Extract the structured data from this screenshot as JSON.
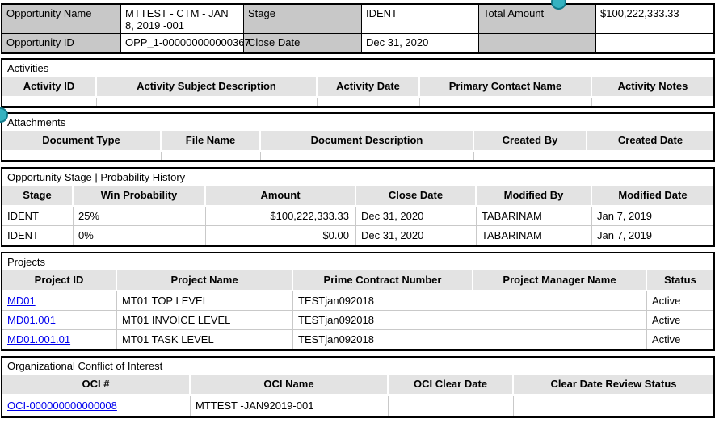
{
  "colors": {
    "label_bg": "#c8c8c8",
    "header_bg": "#e3e3e3",
    "link": "#0000ee",
    "annotation_dot": "#35b2c0"
  },
  "summary": {
    "opportunity_name_label": "Opportunity Name",
    "opportunity_name": "MTTEST - CTM - JAN 8, 2019 -001",
    "stage_label": "Stage",
    "stage": "IDENT",
    "total_amount_label": "Total Amount",
    "total_amount": "$100,222,333.33",
    "opportunity_id_label": "Opportunity ID",
    "opportunity_id": "OPP_1-000000000000367",
    "close_date_label": "Close Date",
    "close_date": "Dec 31, 2020"
  },
  "activities": {
    "title": "Activities",
    "columns": [
      "Activity ID",
      "Activity Subject Description",
      "Activity Date",
      "Primary Contact Name",
      "Activity Notes"
    ]
  },
  "attachments": {
    "title": "Attachments",
    "columns": [
      "Document Type",
      "File Name",
      "Document Description",
      "Created By",
      "Created Date"
    ]
  },
  "stage_history": {
    "title": "Opportunity Stage | Probability History",
    "columns": [
      "Stage",
      "Win Probability",
      "Amount",
      "Close Date",
      "Modified By",
      "Modified Date"
    ],
    "rows": [
      {
        "stage": "IDENT",
        "win_probability": "25%",
        "amount": "$100,222,333.33",
        "close_date": "Dec 31, 2020",
        "modified_by": "TABARINAM",
        "modified_date": "Jan 7, 2019"
      },
      {
        "stage": "IDENT",
        "win_probability": "0%",
        "amount": "$0.00",
        "close_date": "Dec 31, 2020",
        "modified_by": "TABARINAM",
        "modified_date": "Jan 7, 2019"
      }
    ]
  },
  "projects": {
    "title": "Projects",
    "columns": [
      "Project ID",
      "Project Name",
      "Prime Contract Number",
      "Project Manager Name",
      "Status"
    ],
    "rows": [
      {
        "project_id": "MD01",
        "project_name": "MT01 TOP LEVEL",
        "prime_contract_number": "TESTjan092018",
        "project_manager_name": "",
        "status": "Active"
      },
      {
        "project_id": "MD01.001",
        "project_name": "MT01 INVOICE LEVEL",
        "prime_contract_number": "TESTjan092018",
        "project_manager_name": "",
        "status": "Active"
      },
      {
        "project_id": "MD01.001.01",
        "project_name": "MT01 TASK LEVEL",
        "prime_contract_number": "TESTjan092018",
        "project_manager_name": "",
        "status": "Active"
      }
    ]
  },
  "oci": {
    "title": "Organizational Conflict of Interest",
    "columns": [
      "OCI #",
      "OCI Name",
      "OCI Clear Date",
      "Clear Date Review Status"
    ],
    "rows": [
      {
        "oci_number": "OCI-000000000000008",
        "oci_name": "MTTEST -JAN92019-001",
        "oci_clear_date": "",
        "clear_date_review_status": ""
      }
    ]
  }
}
